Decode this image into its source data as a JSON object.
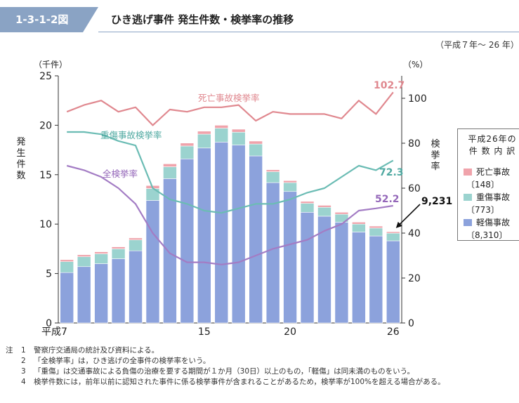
{
  "header": {
    "fig_id": "1-3-1-2図",
    "title": "ひき逃げ事件 発生件数・検挙率の推移"
  },
  "period": "（平成７年～ 26 年）",
  "chart_data": {
    "type": "bar",
    "categories": [
      "平成7",
      "8",
      "9",
      "10",
      "11",
      "12",
      "13",
      "14",
      "15",
      "16",
      "17",
      "18",
      "19",
      "20",
      "21",
      "22",
      "23",
      "24",
      "25",
      "26"
    ],
    "x_tick_labels": [
      "平成7",
      "15",
      "20",
      "26"
    ],
    "x_tick_indices": [
      0,
      8,
      13,
      19
    ],
    "series": [
      {
        "name": "軽傷事故",
        "axis": "left",
        "color": "#8ca2dc",
        "stacked": true,
        "values": [
          5.1,
          5.7,
          6.0,
          6.5,
          7.3,
          12.4,
          14.6,
          16.6,
          17.7,
          18.3,
          18.0,
          16.9,
          14.2,
          13.3,
          11.2,
          10.8,
          10.2,
          9.2,
          8.8,
          8.31
        ]
      },
      {
        "name": "重傷事故",
        "axis": "left",
        "color": "#9bd3cf",
        "stacked": true,
        "values": [
          1.1,
          1.0,
          1.0,
          1.0,
          1.1,
          1.2,
          1.2,
          1.3,
          1.4,
          1.4,
          1.3,
          1.2,
          1.1,
          0.9,
          0.9,
          0.9,
          0.8,
          0.8,
          0.8,
          0.773
        ]
      },
      {
        "name": "死亡事故",
        "axis": "left",
        "color": "#f0a3ab",
        "stacked": true,
        "values": [
          0.2,
          0.2,
          0.2,
          0.2,
          0.2,
          0.3,
          0.3,
          0.3,
          0.3,
          0.3,
          0.3,
          0.3,
          0.2,
          0.2,
          0.2,
          0.2,
          0.2,
          0.2,
          0.2,
          0.148
        ]
      },
      {
        "name": "死亡事故検挙率",
        "axis": "right",
        "type": "line",
        "color": "#e0888f",
        "values": [
          94,
          97,
          99,
          94,
          96,
          88,
          95,
          94,
          96,
          96,
          97,
          90,
          94,
          93,
          93,
          93,
          91,
          99,
          93,
          102.7
        ]
      },
      {
        "name": "重傷事故検挙率",
        "axis": "right",
        "type": "line",
        "color": "#6bbcb4",
        "values": [
          85,
          85,
          84,
          81,
          79,
          60,
          55,
          53,
          50,
          49,
          51,
          53,
          53,
          55,
          58,
          60,
          65,
          70,
          68,
          72.3
        ]
      },
      {
        "name": "全検挙率",
        "axis": "right",
        "type": "line",
        "color": "#a37cc4",
        "values": [
          70,
          68,
          65,
          60,
          53,
          40,
          31,
          27,
          27,
          26,
          27,
          30,
          33,
          35,
          37,
          41,
          44,
          50,
          51,
          52.2
        ]
      }
    ],
    "left_axis": {
      "unit": "（千件）",
      "label": "発生件数",
      "ylim": [
        0,
        25
      ],
      "ticks": [
        0,
        5,
        10,
        15,
        20,
        25
      ]
    },
    "right_axis": {
      "unit": "（%）",
      "label": "検挙率",
      "ylim": [
        0,
        110
      ],
      "ticks": [
        0,
        20,
        40,
        60,
        80,
        100
      ]
    },
    "line_labels": {
      "fatal": "死亡事故検挙率",
      "serious": "重傷事故検挙率",
      "all": "全検挙率"
    },
    "end_labels": {
      "fatal": "102.7",
      "serious": "72.3",
      "all": "52.2",
      "total": "9,231"
    },
    "legend": {
      "title_line1": "平成26年の",
      "title_line2": "件 数 内 訳",
      "items": [
        {
          "name": "死亡事故",
          "count": "〔148〕",
          "color": "#f0a3ab"
        },
        {
          "name": "重傷事故",
          "count": "〔773〕",
          "color": "#9bd3cf"
        },
        {
          "name": "軽傷事故",
          "count": "〔8,310〕",
          "color": "#8ca2dc"
        }
      ]
    }
  },
  "notes": {
    "lead": "注",
    "items": [
      {
        "num": "1",
        "text": "警察庁交通局の統計及び資料による。"
      },
      {
        "num": "2",
        "text": "「全検挙率」は，ひき逃げの全事件の検挙率をいう。"
      },
      {
        "num": "3",
        "text": "「重傷」は交通事故による負傷の治療を要する期間が１か月（30日）以上のもの，「軽傷」は同未満のものをいう。"
      },
      {
        "num": "4",
        "text": "検挙件数には，前年以前に認知された事件に係る検挙事件が含まれることがあるため，検挙率が100%を超える場合がある。"
      }
    ]
  }
}
